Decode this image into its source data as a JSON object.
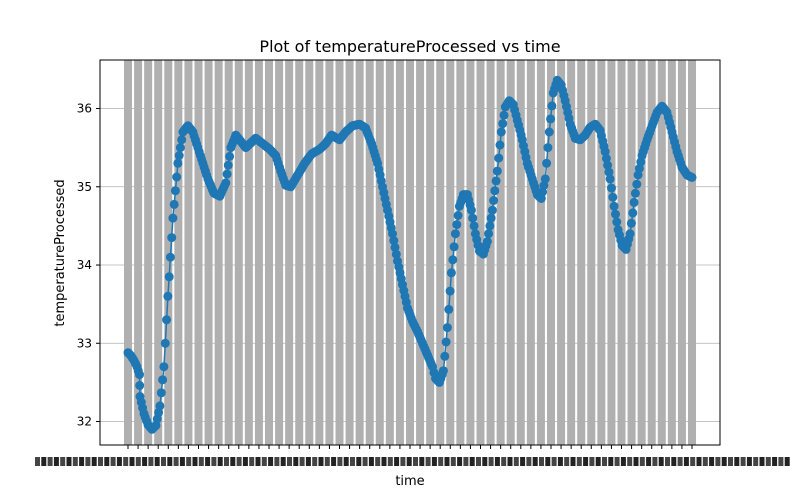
{
  "chart_data": {
    "type": "line",
    "title": "Plot of temperatureProcessed vs time",
    "xlabel": "time",
    "ylabel": "temperatureProcessed",
    "ylim": [
      31.7,
      36.62
    ],
    "yticks": [
      32,
      33,
      34,
      35,
      36
    ],
    "grid": true,
    "marker": "circle",
    "series_color": "#1f77b4",
    "grid_color": "#b0b0b0",
    "anchors": [
      [
        0,
        32.88
      ],
      [
        0.3,
        32.84
      ],
      [
        0.6,
        32.78
      ],
      [
        0.9,
        32.7
      ],
      [
        1.15,
        32.6
      ],
      [
        1.2,
        32.32
      ],
      [
        1.6,
        32.1
      ],
      [
        2.0,
        31.96
      ],
      [
        2.4,
        31.9
      ],
      [
        2.8,
        31.95
      ],
      [
        3.2,
        32.2
      ],
      [
        3.6,
        32.7
      ],
      [
        4.0,
        33.6
      ],
      [
        4.5,
        34.6
      ],
      [
        5.0,
        35.3
      ],
      [
        5.5,
        35.7
      ],
      [
        6.0,
        35.78
      ],
      [
        6.5,
        35.7
      ],
      [
        7.0,
        35.5
      ],
      [
        7.5,
        35.3
      ],
      [
        8.0,
        35.1
      ],
      [
        8.6,
        34.92
      ],
      [
        9.2,
        34.88
      ],
      [
        9.8,
        35.05
      ],
      [
        10.3,
        35.5
      ],
      [
        10.8,
        35.66
      ],
      [
        11.3,
        35.58
      ],
      [
        11.8,
        35.5
      ],
      [
        12.3,
        35.56
      ],
      [
        12.8,
        35.62
      ],
      [
        13.5,
        35.55
      ],
      [
        14.2,
        35.48
      ],
      [
        14.8,
        35.4
      ],
      [
        15.3,
        35.2
      ],
      [
        15.8,
        35.02
      ],
      [
        16.3,
        35.0
      ],
      [
        17.0,
        35.15
      ],
      [
        17.7,
        35.3
      ],
      [
        18.4,
        35.42
      ],
      [
        19.2,
        35.48
      ],
      [
        19.8,
        35.55
      ],
      [
        20.4,
        35.66
      ],
      [
        21.2,
        35.6
      ],
      [
        21.8,
        35.7
      ],
      [
        22.5,
        35.78
      ],
      [
        23.2,
        35.8
      ],
      [
        23.8,
        35.75
      ],
      [
        24.4,
        35.55
      ],
      [
        25.0,
        35.3
      ],
      [
        25.5,
        35.0
      ],
      [
        26.0,
        34.7
      ],
      [
        26.5,
        34.4
      ],
      [
        27.0,
        34.05
      ],
      [
        27.5,
        33.75
      ],
      [
        28.0,
        33.45
      ],
      [
        28.5,
        33.28
      ],
      [
        29.0,
        33.15
      ],
      [
        29.5,
        33.0
      ],
      [
        30.0,
        32.85
      ],
      [
        30.5,
        32.7
      ],
      [
        30.8,
        32.55
      ],
      [
        31.2,
        32.5
      ],
      [
        31.6,
        32.65
      ],
      [
        32.0,
        33.2
      ],
      [
        32.4,
        33.9
      ],
      [
        32.8,
        34.4
      ],
      [
        33.2,
        34.75
      ],
      [
        33.6,
        34.9
      ],
      [
        34.0,
        34.9
      ],
      [
        34.4,
        34.7
      ],
      [
        34.8,
        34.4
      ],
      [
        35.2,
        34.18
      ],
      [
        35.6,
        34.14
      ],
      [
        36.0,
        34.3
      ],
      [
        36.5,
        34.7
      ],
      [
        37.0,
        35.2
      ],
      [
        37.4,
        35.7
      ],
      [
        37.8,
        36.02
      ],
      [
        38.2,
        36.1
      ],
      [
        38.6,
        36.05
      ],
      [
        39.0,
        35.85
      ],
      [
        39.5,
        35.6
      ],
      [
        40.0,
        35.3
      ],
      [
        40.5,
        35.1
      ],
      [
        41.0,
        34.9
      ],
      [
        41.4,
        34.85
      ],
      [
        41.8,
        35.1
      ],
      [
        42.2,
        35.7
      ],
      [
        42.6,
        36.2
      ],
      [
        43.0,
        36.36
      ],
      [
        43.4,
        36.3
      ],
      [
        43.8,
        36.1
      ],
      [
        44.3,
        35.8
      ],
      [
        44.8,
        35.62
      ],
      [
        45.3,
        35.6
      ],
      [
        45.8,
        35.66
      ],
      [
        46.3,
        35.76
      ],
      [
        46.8,
        35.8
      ],
      [
        47.3,
        35.72
      ],
      [
        47.8,
        35.45
      ],
      [
        48.3,
        35.1
      ],
      [
        48.7,
        34.75
      ],
      [
        49.1,
        34.45
      ],
      [
        49.5,
        34.25
      ],
      [
        49.9,
        34.2
      ],
      [
        50.3,
        34.4
      ],
      [
        50.7,
        34.8
      ],
      [
        51.1,
        35.15
      ],
      [
        51.5,
        35.4
      ],
      [
        52.0,
        35.6
      ],
      [
        52.5,
        35.78
      ],
      [
        53.0,
        35.95
      ],
      [
        53.5,
        36.03
      ],
      [
        54.0,
        35.95
      ],
      [
        54.5,
        35.7
      ],
      [
        55.0,
        35.45
      ],
      [
        55.5,
        35.25
      ],
      [
        56.0,
        35.15
      ],
      [
        56.5,
        35.12
      ]
    ],
    "x_index_range": [
      0,
      56.5
    ],
    "num_xticks": 56,
    "xtick_labels": "unreadable overlapping date labels"
  }
}
